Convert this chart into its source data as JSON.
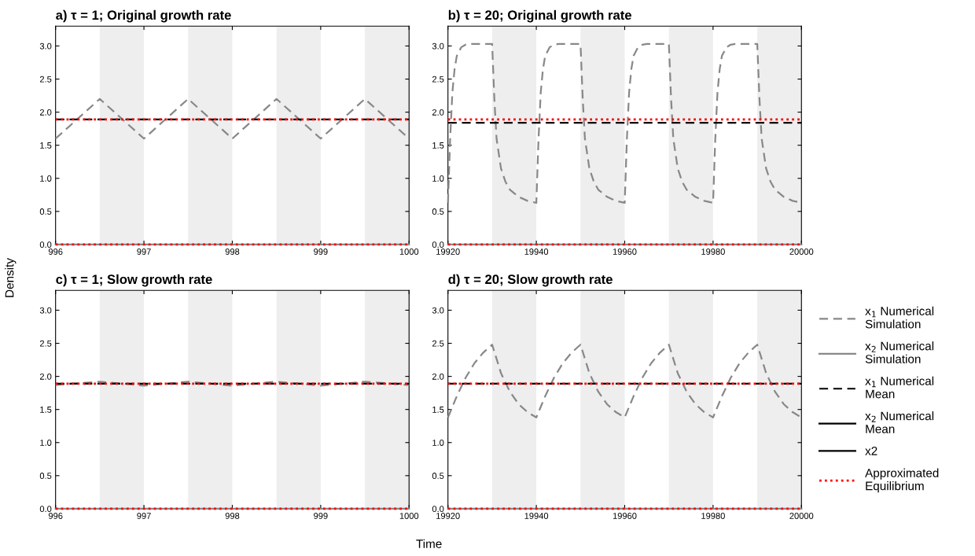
{
  "chart_data": [
    {
      "type": "line",
      "title": "a) τ = 1; Original growth rate",
      "xlabel": "Time",
      "ylabel": "Density",
      "xlim": [
        996,
        1000
      ],
      "xticks": [
        996,
        997,
        998,
        999,
        1000
      ],
      "ylim": [
        0,
        3.3
      ],
      "yticks": [
        {
          "value": 0,
          "label": "0.0"
        },
        0.5,
        {
          "value": 1,
          "label": "1.0"
        },
        1.5,
        {
          "value": 2,
          "label": "2.0"
        },
        2.5,
        {
          "value": 3,
          "label": "3.0"
        }
      ],
      "bands": [
        {
          "axis": "x",
          "from": 996.5,
          "to": 997,
          "color": "#eeeeee"
        },
        {
          "axis": "x",
          "from": 997.5,
          "to": 998,
          "color": "#eeeeee"
        },
        {
          "axis": "x",
          "from": 998.5,
          "to": 999,
          "color": "#eeeeee"
        },
        {
          "axis": "x",
          "from": 999.5,
          "to": 1000,
          "color": "#eeeeee"
        }
      ],
      "series": [
        {
          "color": "#888888",
          "line_style": "dashed",
          "x": [
            996,
            996.5,
            997,
            997.5,
            998,
            998.5,
            999,
            999.5,
            1000
          ],
          "values": [
            1.6,
            2.2,
            1.6,
            2.2,
            1.6,
            2.2,
            1.6,
            2.2,
            1.6
          ]
        },
        {
          "color": "#888888",
          "line_style": "solid",
          "x": [
            996,
            1000
          ],
          "values": [
            0,
            0
          ]
        },
        {
          "color": "#000000",
          "line_style": "dashed",
          "x": [
            996,
            1000
          ],
          "values": [
            1.89,
            1.89
          ]
        },
        {
          "color": "#000000",
          "line_style": "solid",
          "values": [
            null,
            null
          ]
        },
        {
          "color": "#ff0000",
          "line_style": "dotted",
          "x": [
            996,
            1000
          ],
          "values": [
            1.89,
            1.89
          ]
        },
        {
          "color": "#ff0000",
          "line_style": "dotted",
          "x": [
            996,
            1000
          ],
          "values": [
            0,
            0
          ]
        }
      ]
    },
    {
      "type": "line",
      "title": "b) τ = 20; Original growth rate",
      "xlim": [
        19920,
        20000
      ],
      "xticks": [
        19920,
        19940,
        19960,
        19980,
        20000
      ],
      "ylim": [
        0,
        3.3
      ],
      "yticks": [
        {
          "value": 0,
          "label": "0.0"
        },
        0.5,
        {
          "value": 1,
          "label": "1.0"
        },
        1.5,
        {
          "value": 2,
          "label": "2.0"
        },
        2.5,
        {
          "value": 3,
          "label": "3.0"
        }
      ],
      "bands": [
        {
          "axis": "x",
          "from": 19930,
          "to": 19940,
          "color": "#eeeeee"
        },
        {
          "axis": "x",
          "from": 19950,
          "to": 19960,
          "color": "#eeeeee"
        },
        {
          "axis": "x",
          "from": 19970,
          "to": 19980,
          "color": "#eeeeee"
        },
        {
          "axis": "x",
          "from": 19990,
          "to": 20000,
          "color": "#eeeeee"
        }
      ],
      "series": [
        {
          "color": "#888888",
          "line_style": "dashed",
          "x": [
            19920,
            19920.5,
            19921,
            19921.5,
            19922,
            19923,
            19924,
            19925,
            19930,
            19930.5,
            19931,
            19932,
            19933,
            19934,
            19936,
            19938,
            19940,
            19940.5,
            19941,
            19941.5,
            19942,
            19943,
            19944,
            19945,
            19950,
            19950.5,
            19951,
            19952,
            19953,
            19954,
            19956,
            19958,
            19960,
            19960.5,
            19961,
            19961.5,
            19962,
            19963,
            19964,
            19965,
            19970,
            19970.5,
            19971,
            19972,
            19973,
            19974,
            19976,
            19978,
            19980,
            19980.5,
            19981,
            19981.5,
            19982,
            19983,
            19984,
            19985,
            19990,
            19990.5,
            19991,
            19992,
            19993,
            19994,
            19996,
            19998,
            20000
          ],
          "values": [
            0.63,
            1.6,
            2.3,
            2.65,
            2.85,
            2.98,
            3.02,
            3.03,
            3.03,
            2.2,
            1.6,
            1.15,
            0.95,
            0.83,
            0.72,
            0.66,
            0.63,
            1.6,
            2.3,
            2.65,
            2.85,
            2.98,
            3.02,
            3.03,
            3.03,
            2.2,
            1.6,
            1.15,
            0.95,
            0.83,
            0.72,
            0.66,
            0.63,
            1.6,
            2.3,
            2.65,
            2.85,
            2.98,
            3.02,
            3.03,
            3.03,
            2.2,
            1.6,
            1.15,
            0.95,
            0.83,
            0.72,
            0.66,
            0.63,
            1.6,
            2.3,
            2.65,
            2.85,
            2.98,
            3.02,
            3.03,
            3.03,
            2.2,
            1.6,
            1.15,
            0.95,
            0.83,
            0.72,
            0.66,
            0.63
          ]
        },
        {
          "color": "#888888",
          "line_style": "solid",
          "x": [
            19920,
            20000
          ],
          "values": [
            0,
            0
          ]
        },
        {
          "color": "#000000",
          "line_style": "dashed",
          "x": [
            19920,
            20000
          ],
          "values": [
            1.84,
            1.84
          ]
        },
        {
          "color": "#000000",
          "line_style": "solid",
          "values": [
            null,
            null
          ]
        },
        {
          "color": "#ff0000",
          "line_style": "dotted",
          "x": [
            19920,
            20000
          ],
          "values": [
            1.89,
            1.89
          ]
        },
        {
          "color": "#ff0000",
          "line_style": "dotted",
          "x": [
            19920,
            20000
          ],
          "values": [
            0,
            0
          ]
        }
      ]
    },
    {
      "type": "line",
      "title": "c) τ = 1; Slow growth rate",
      "xlim": [
        996,
        1000
      ],
      "xticks": [
        996,
        997,
        998,
        999,
        1000
      ],
      "ylim": [
        0,
        3.3
      ],
      "yticks": [
        {
          "value": 0,
          "label": "0.0"
        },
        0.5,
        {
          "value": 1,
          "label": "1.0"
        },
        1.5,
        {
          "value": 2,
          "label": "2.0"
        },
        2.5,
        {
          "value": 3,
          "label": "3.0"
        }
      ],
      "bands": [
        {
          "axis": "x",
          "from": 996.5,
          "to": 997,
          "color": "#eeeeee"
        },
        {
          "axis": "x",
          "from": 997.5,
          "to": 998,
          "color": "#eeeeee"
        },
        {
          "axis": "x",
          "from": 998.5,
          "to": 999,
          "color": "#eeeeee"
        },
        {
          "axis": "x",
          "from": 999.5,
          "to": 1000,
          "color": "#eeeeee"
        }
      ],
      "series": [
        {
          "color": "#888888",
          "line_style": "dashed",
          "x": [
            996,
            996.5,
            997,
            997.5,
            998,
            998.5,
            999,
            999.5,
            1000
          ],
          "values": [
            1.87,
            1.92,
            1.86,
            1.92,
            1.86,
            1.92,
            1.86,
            1.92,
            1.87
          ]
        },
        {
          "color": "#888888",
          "line_style": "solid",
          "x": [
            996,
            1000
          ],
          "values": [
            0,
            0
          ]
        },
        {
          "color": "#000000",
          "line_style": "dashed",
          "x": [
            996,
            1000
          ],
          "values": [
            1.89,
            1.89
          ]
        },
        {
          "color": "#000000",
          "line_style": "solid",
          "values": [
            null,
            null
          ]
        },
        {
          "color": "#ff0000",
          "line_style": "dotted",
          "x": [
            996,
            1000
          ],
          "values": [
            1.89,
            1.89
          ]
        },
        {
          "color": "#ff0000",
          "line_style": "dotted",
          "x": [
            996,
            1000
          ],
          "values": [
            0,
            0
          ]
        }
      ]
    },
    {
      "type": "line",
      "title": "d) τ = 20; Slow growth rate",
      "legend": "right",
      "xlim": [
        19920,
        20000
      ],
      "xticks": [
        19920,
        19940,
        19960,
        19980,
        20000
      ],
      "ylim": [
        0,
        3.3
      ],
      "yticks": [
        {
          "value": 0,
          "label": "0.0"
        },
        0.5,
        {
          "value": 1,
          "label": "1.0"
        },
        1.5,
        {
          "value": 2,
          "label": "2.0"
        },
        2.5,
        {
          "value": 3,
          "label": "3.0"
        }
      ],
      "bands": [
        {
          "axis": "x",
          "from": 19930,
          "to": 19940,
          "color": "#eeeeee"
        },
        {
          "axis": "x",
          "from": 19950,
          "to": 19960,
          "color": "#eeeeee"
        },
        {
          "axis": "x",
          "from": 19970,
          "to": 19980,
          "color": "#eeeeee"
        },
        {
          "axis": "x",
          "from": 19990,
          "to": 20000,
          "color": "#eeeeee"
        }
      ],
      "series": [
        {
          "name": "x$_{1}$ Numerical\nSimulation",
          "color": "#888888",
          "line_style": "dashed",
          "x": [
            19920,
            19922,
            19924,
            19926,
            19928,
            19930,
            19932,
            19934,
            19936,
            19938,
            19940,
            19942,
            19944,
            19946,
            19948,
            19950,
            19952,
            19954,
            19956,
            19958,
            19960,
            19962,
            19964,
            19966,
            19968,
            19970,
            19972,
            19974,
            19976,
            19978,
            19980,
            19982,
            19984,
            19986,
            19988,
            19990,
            19992,
            19994,
            19996,
            19998,
            20000
          ],
          "values": [
            1.38,
            1.7,
            1.98,
            2.2,
            2.36,
            2.48,
            2.05,
            1.77,
            1.58,
            1.46,
            1.38,
            1.7,
            1.98,
            2.2,
            2.36,
            2.48,
            2.05,
            1.77,
            1.58,
            1.46,
            1.38,
            1.7,
            1.98,
            2.2,
            2.36,
            2.48,
            2.05,
            1.77,
            1.58,
            1.46,
            1.38,
            1.7,
            1.98,
            2.2,
            2.36,
            2.48,
            2.05,
            1.77,
            1.58,
            1.46,
            1.38
          ]
        },
        {
          "name": "x$_{2}$ Numerical\nSimulation",
          "color": "#888888",
          "line_style": "solid",
          "x": [
            19920,
            20000
          ],
          "values": [
            0,
            0
          ]
        },
        {
          "name": "x$_{1}$ Numerical\nMean",
          "color": "#000000",
          "line_style": "dashed",
          "x": [
            19920,
            20000
          ],
          "values": [
            1.89,
            1.89
          ]
        },
        {
          "name": "x$_{2}$ Numerical\nMean",
          "color": "#000000",
          "line_style": "solid",
          "values": [
            null,
            null
          ]
        },
        {
          "name": "x2",
          "color": "#000000",
          "line_style": "solid",
          "values": [
            null,
            null
          ]
        },
        {
          "name": "Approximated\nEquilibrium",
          "color": "#ff0000",
          "line_style": "dotted",
          "x": [
            19920,
            20000
          ],
          "values": [
            1.89,
            1.89
          ]
        },
        {
          "color": "#ff0000",
          "line_style": "dotted",
          "x": [
            19920,
            20000
          ],
          "values": [
            0,
            0
          ]
        }
      ]
    }
  ]
}
